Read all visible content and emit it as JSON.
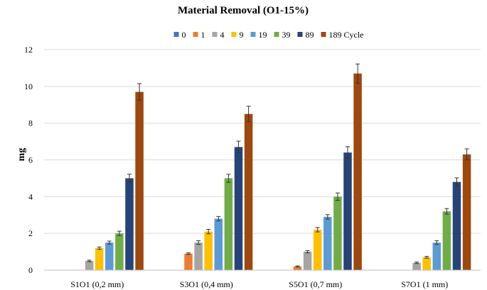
{
  "chart_data": {
    "type": "bar",
    "title": "Material Removal (O1-15%)",
    "xlabel": "",
    "ylabel": "mg",
    "ylim": [
      0,
      12
    ],
    "yticks": [
      0,
      2,
      4,
      6,
      8,
      10,
      12
    ],
    "grid": true,
    "legend_position": "top",
    "categories": [
      "S1O1 (0,2 mm)",
      "S3O1 (0,4 mm)",
      "S5O1 (0,7 mm)",
      "S7O1 (1 mm)"
    ],
    "series": [
      {
        "name": "0",
        "color": "#4472c4",
        "values": [
          0,
          0,
          0,
          0
        ],
        "errors": [
          0,
          0,
          0,
          0
        ]
      },
      {
        "name": "1",
        "color": "#ed7d31",
        "values": [
          0,
          0.9,
          0.2,
          0
        ],
        "errors": [
          0,
          0.04,
          0.03,
          0
        ]
      },
      {
        "name": "4",
        "color": "#a5a5a5",
        "values": [
          0.5,
          1.5,
          1.0,
          0.4
        ],
        "errors": [
          0.04,
          0.1,
          0.06,
          0.04
        ]
      },
      {
        "name": "9",
        "color": "#ffc000",
        "values": [
          1.2,
          2.1,
          2.2,
          0.7
        ],
        "errors": [
          0.06,
          0.12,
          0.12,
          0.05
        ]
      },
      {
        "name": "19",
        "color": "#5b9bd5",
        "values": [
          1.5,
          2.8,
          2.9,
          1.5
        ],
        "errors": [
          0.08,
          0.12,
          0.12,
          0.1
        ]
      },
      {
        "name": "39",
        "color": "#70ad47",
        "values": [
          2.0,
          5.0,
          4.0,
          3.2
        ],
        "errors": [
          0.12,
          0.22,
          0.2,
          0.15
        ]
      },
      {
        "name": "89",
        "color": "#264478",
        "values": [
          5.0,
          6.7,
          6.4,
          4.8
        ],
        "errors": [
          0.22,
          0.32,
          0.32,
          0.22
        ]
      },
      {
        "name": "189 Cycle",
        "color": "#9e480e",
        "values": [
          9.7,
          8.5,
          10.7,
          6.3
        ],
        "errors": [
          0.45,
          0.42,
          0.52,
          0.3
        ]
      }
    ]
  }
}
